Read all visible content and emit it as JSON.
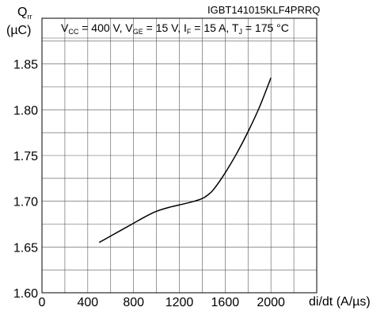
{
  "chart_data": {
    "type": "line",
    "part_number": "IGBT141015KLF4PRRQ",
    "conditions": {
      "vcc": "V",
      "vcc_sub": "CC",
      "vcc_val": " = 400 V, ",
      "vge": "V",
      "vge_sub": "GE",
      "vge_val": " = 15 V, ",
      "if": "I",
      "if_sub": "F",
      "if_val": " = 15 A, ",
      "tj": "T",
      "tj_sub": "J",
      "tj_val": " = 175 °C"
    },
    "ylabel": {
      "symbol": "Q",
      "sub": "rr",
      "unit": "(µC)"
    },
    "xlabel": "di/dt (A/µs)",
    "xlim": [
      0,
      2400
    ],
    "ylim": [
      1.6,
      1.9
    ],
    "x_ticks": [
      "0",
      "400",
      "800",
      "1200",
      "1600",
      "2000"
    ],
    "x_tick_values": [
      0,
      400,
      800,
      1200,
      1600,
      2000
    ],
    "y_ticks": [
      "1.60",
      "1.65",
      "1.70",
      "1.75",
      "1.80",
      "1.85"
    ],
    "y_tick_values": [
      1.6,
      1.65,
      1.7,
      1.75,
      1.8,
      1.85
    ],
    "grid": true,
    "series": [
      {
        "x": [
          500,
          600,
          700,
          800,
          900,
          1000,
          1100,
          1200,
          1300,
          1400,
          1450,
          1500,
          1600,
          1700,
          1800,
          1900,
          2000
        ],
        "y": [
          1.655,
          1.662,
          1.669,
          1.676,
          1.683,
          1.689,
          1.693,
          1.696,
          1.699,
          1.703,
          1.707,
          1.713,
          1.731,
          1.752,
          1.776,
          1.803,
          1.835
        ]
      }
    ]
  }
}
